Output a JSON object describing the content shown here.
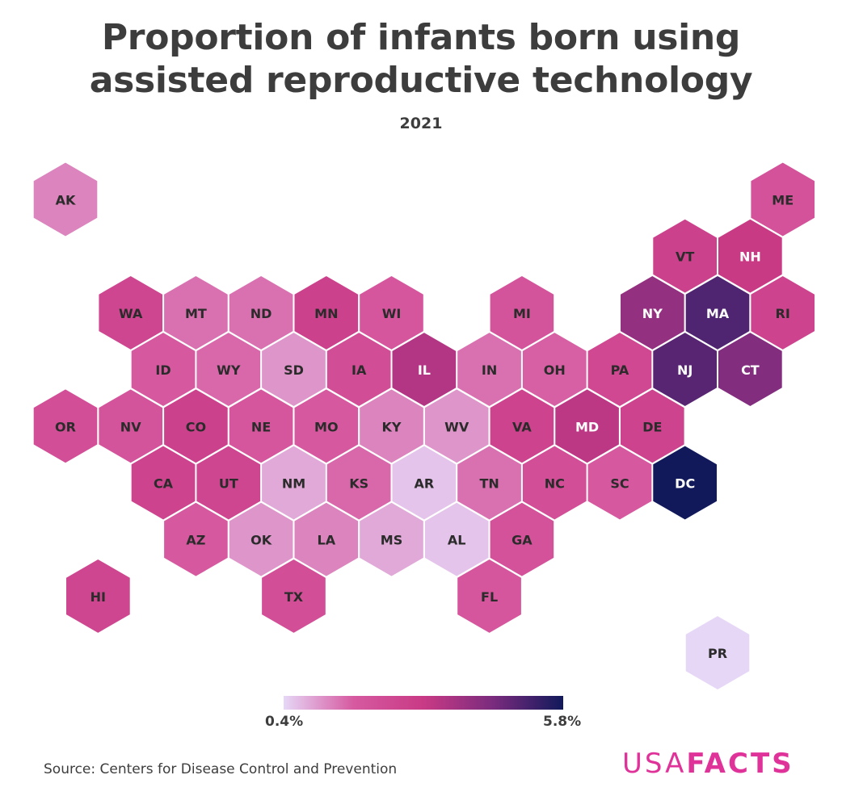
{
  "title_line1": "Proportion of infants born using",
  "title_line2": "assisted reproductive technology",
  "subtitle": "2021",
  "legend": {
    "min_label": "0.4%",
    "max_label": "5.8%",
    "min_value": 0.4,
    "max_value": 5.8,
    "colors": [
      "#e6d7f7",
      "#d65aa0",
      "#c93a85",
      "#7a2b7e",
      "#11195b"
    ]
  },
  "source": "Source: Centers for Disease Control and Prevention",
  "logo": {
    "usa": "USA",
    "facts": "FACTS",
    "color": "#e0339a"
  },
  "chart_data": {
    "type": "heatmap",
    "title": "Proportion of infants born using assisted reproductive technology",
    "subtitle": "2021",
    "unit": "%",
    "range": [
      0.4,
      5.8
    ],
    "states": [
      {
        "code": "AK",
        "row": 0,
        "col": 0,
        "value": 1.3
      },
      {
        "code": "ME",
        "row": 0,
        "col": 11,
        "value": 2.1
      },
      {
        "code": "VT",
        "row": 1,
        "col": 9,
        "value": 2.8
      },
      {
        "code": "NH",
        "row": 1,
        "col": 10,
        "value": 3.1
      },
      {
        "code": "WA",
        "row": 2,
        "col": 1,
        "value": 2.6
      },
      {
        "code": "MT",
        "row": 2,
        "col": 2,
        "value": 1.5
      },
      {
        "code": "ND",
        "row": 2,
        "col": 3,
        "value": 1.5
      },
      {
        "code": "MN",
        "row": 2,
        "col": 4,
        "value": 2.8
      },
      {
        "code": "WI",
        "row": 2,
        "col": 5,
        "value": 1.9
      },
      {
        "code": "MI",
        "row": 2,
        "col": 7,
        "value": 2.0
      },
      {
        "code": "NY",
        "row": 2,
        "col": 9,
        "value": 4.0
      },
      {
        "code": "MA",
        "row": 2,
        "col": 10,
        "value": 5.0
      },
      {
        "code": "RI",
        "row": 2,
        "col": 11,
        "value": 2.7
      },
      {
        "code": "ID",
        "row": 3,
        "col": 1,
        "value": 1.8
      },
      {
        "code": "WY",
        "row": 3,
        "col": 2,
        "value": 1.6
      },
      {
        "code": "SD",
        "row": 3,
        "col": 3,
        "value": 1.1
      },
      {
        "code": "IA",
        "row": 3,
        "col": 4,
        "value": 2.3
      },
      {
        "code": "IL",
        "row": 3,
        "col": 5,
        "value": 3.5
      },
      {
        "code": "IN",
        "row": 3,
        "col": 6,
        "value": 1.5
      },
      {
        "code": "OH",
        "row": 3,
        "col": 7,
        "value": 1.7
      },
      {
        "code": "PA",
        "row": 3,
        "col": 8,
        "value": 2.5
      },
      {
        "code": "NJ",
        "row": 3,
        "col": 9,
        "value": 4.9
      },
      {
        "code": "CT",
        "row": 3,
        "col": 10,
        "value": 4.3
      },
      {
        "code": "OR",
        "row": 4,
        "col": 0,
        "value": 2.2
      },
      {
        "code": "NV",
        "row": 4,
        "col": 1,
        "value": 2.0
      },
      {
        "code": "CO",
        "row": 4,
        "col": 2,
        "value": 2.8
      },
      {
        "code": "NE",
        "row": 4,
        "col": 3,
        "value": 1.9
      },
      {
        "code": "MO",
        "row": 4,
        "col": 4,
        "value": 1.8
      },
      {
        "code": "KY",
        "row": 4,
        "col": 5,
        "value": 1.3
      },
      {
        "code": "WV",
        "row": 4,
        "col": 6,
        "value": 1.1
      },
      {
        "code": "VA",
        "row": 4,
        "col": 7,
        "value": 2.7
      },
      {
        "code": "MD",
        "row": 4,
        "col": 8,
        "value": 3.3
      },
      {
        "code": "DE",
        "row": 4,
        "col": 9,
        "value": 2.7
      },
      {
        "code": "CA",
        "row": 5,
        "col": 1,
        "value": 2.7
      },
      {
        "code": "UT",
        "row": 5,
        "col": 2,
        "value": 2.6
      },
      {
        "code": "NM",
        "row": 5,
        "col": 3,
        "value": 0.9
      },
      {
        "code": "KS",
        "row": 5,
        "col": 4,
        "value": 1.6
      },
      {
        "code": "AR",
        "row": 5,
        "col": 5,
        "value": 0.6
      },
      {
        "code": "TN",
        "row": 5,
        "col": 6,
        "value": 1.5
      },
      {
        "code": "NC",
        "row": 5,
        "col": 7,
        "value": 2.2
      },
      {
        "code": "SC",
        "row": 5,
        "col": 8,
        "value": 1.8
      },
      {
        "code": "DC",
        "row": 5,
        "col": 9,
        "value": 5.8
      },
      {
        "code": "AZ",
        "row": 6,
        "col": 2,
        "value": 1.8
      },
      {
        "code": "OK",
        "row": 6,
        "col": 3,
        "value": 1.1
      },
      {
        "code": "LA",
        "row": 6,
        "col": 4,
        "value": 1.3
      },
      {
        "code": "MS",
        "row": 6,
        "col": 5,
        "value": 0.9
      },
      {
        "code": "AL",
        "row": 6,
        "col": 6,
        "value": 0.6
      },
      {
        "code": "GA",
        "row": 6,
        "col": 7,
        "value": 2.1
      },
      {
        "code": "HI",
        "row": 7,
        "col": 0,
        "value": 2.6
      },
      {
        "code": "TX",
        "row": 7,
        "col": 3,
        "value": 2.2
      },
      {
        "code": "FL",
        "row": 7,
        "col": 6,
        "value": 1.9
      },
      {
        "code": "PR",
        "row": 8,
        "col": 10,
        "value": 0.4
      }
    ]
  }
}
